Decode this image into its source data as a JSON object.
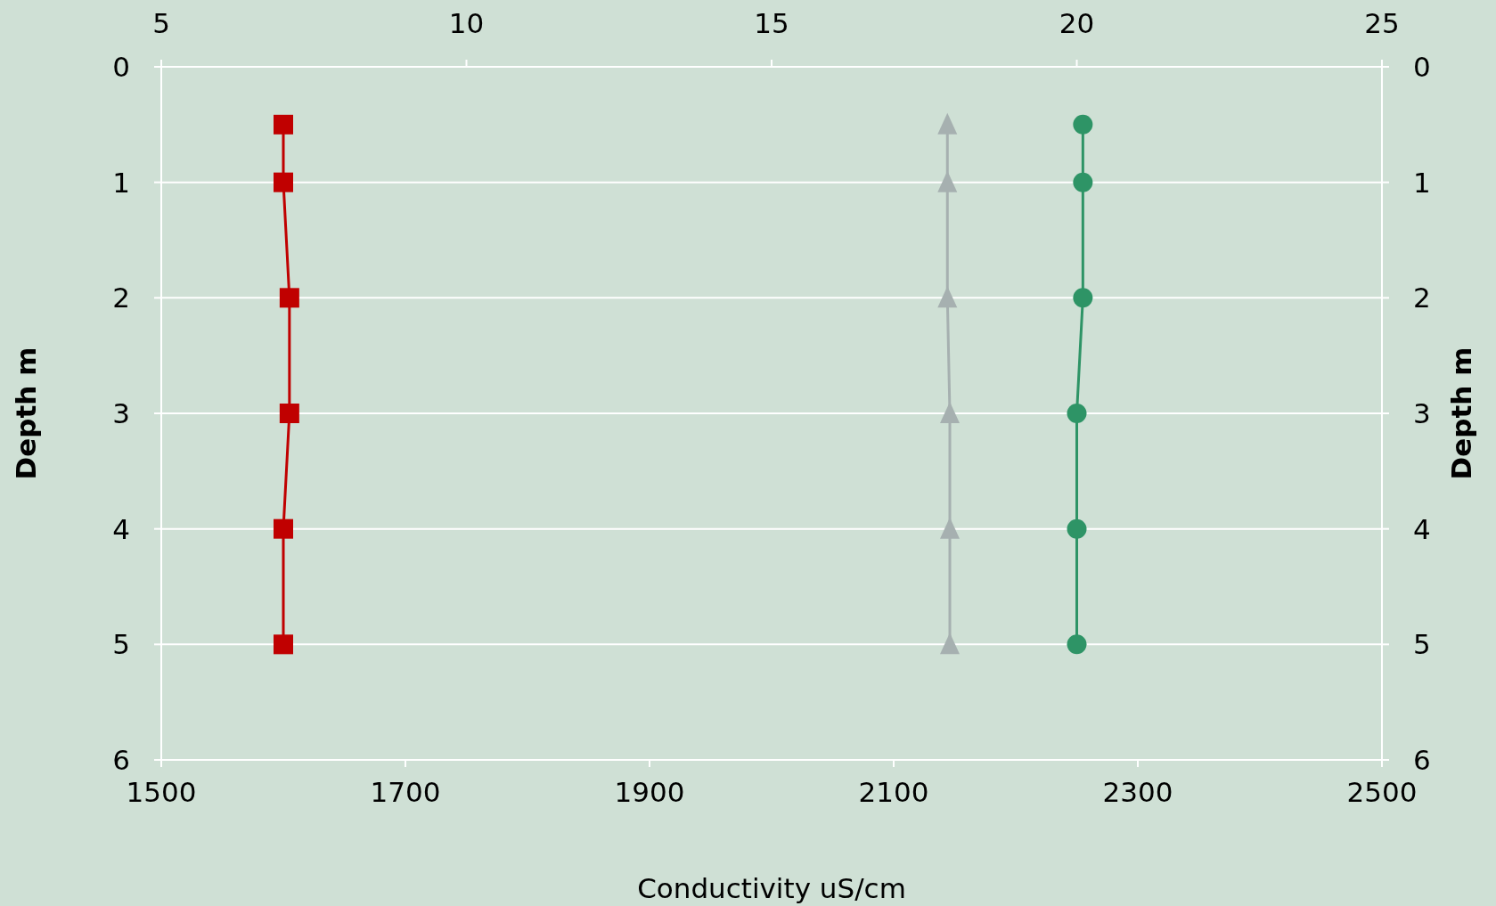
{
  "chart_data": {
    "type": "line",
    "xlabel": "Conductivity uS/cm",
    "ylabel": "Depth m",
    "y2label": "Depth m",
    "xlim": [
      1500,
      2500
    ],
    "xticks": [
      1500,
      1700,
      1900,
      2100,
      2300,
      2500
    ],
    "x2lim": [
      5,
      25
    ],
    "x2ticks": [
      5,
      10,
      15,
      20,
      25
    ],
    "ylim": [
      6,
      0
    ],
    "yticks": [
      0,
      1,
      2,
      3,
      4,
      5,
      6
    ],
    "y2lim": [
      6,
      0
    ],
    "y2ticks": [
      0,
      1,
      2,
      3,
      4,
      5,
      6
    ],
    "grid": "y",
    "series": [
      {
        "axis": "x2",
        "color": "#c00000",
        "marker": "square",
        "x": [
          7.0,
          7.0,
          7.1,
          7.1,
          7.0,
          7.0
        ],
        "values": [
          0.5,
          1,
          2,
          3,
          4,
          5
        ]
      },
      {
        "color": "#a6b0b0",
        "marker": "triangle",
        "x": [
          2144,
          2144,
          2144,
          2146,
          2146,
          2146
        ],
        "values": [
          0.5,
          1,
          2,
          3,
          4,
          5
        ]
      },
      {
        "axis": "x2",
        "color": "#2e9466",
        "marker": "circle",
        "x": [
          20.1,
          20.1,
          20.1,
          20.0,
          20.0,
          20.0
        ],
        "values": [
          0.5,
          1,
          2,
          3,
          4,
          5
        ]
      }
    ]
  }
}
